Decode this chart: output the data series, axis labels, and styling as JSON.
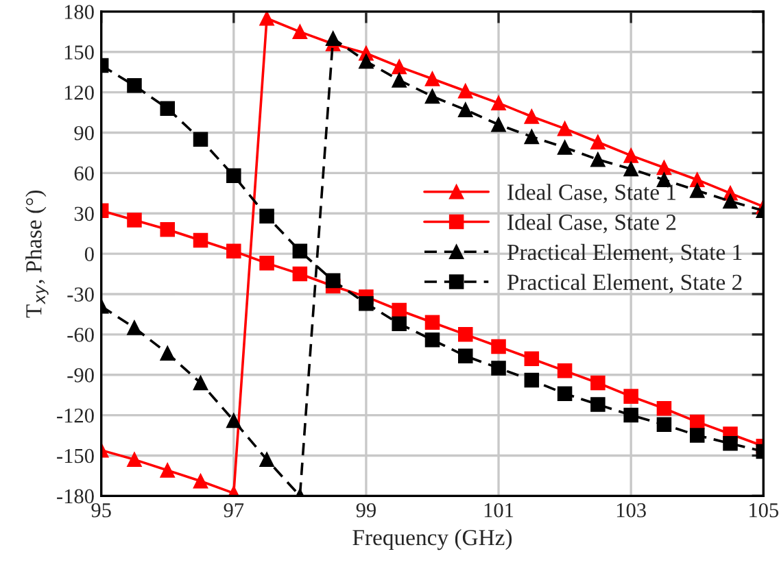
{
  "chart_data": {
    "type": "line",
    "xlabel": "Frequency (GHz)",
    "ylabel": "T$_{xy}$, Phase (°)",
    "x": [
      95,
      95.5,
      96,
      96.5,
      97,
      97.5,
      98,
      98.5,
      99,
      99.5,
      100,
      100.5,
      101,
      101.5,
      102,
      102.5,
      103,
      103.5,
      104,
      104.5,
      105
    ],
    "series": [
      {
        "name": "Ideal Case, State 1",
        "color": "#ff0000",
        "marker": "triangle",
        "line_style": "solid",
        "values": [
          -146,
          -153,
          -161,
          -169,
          -178,
          175,
          165,
          156,
          149,
          139,
          130,
          121,
          112,
          102,
          93,
          83,
          73,
          64,
          55,
          45,
          35
        ]
      },
      {
        "name": "Ideal Case, State 2",
        "color": "#ff0000",
        "marker": "square",
        "line_style": "solid",
        "values": [
          32,
          25,
          18,
          10,
          2,
          -7,
          -15,
          -24,
          -32,
          -42,
          -51,
          -60,
          -69,
          -78,
          -87,
          -96,
          -106,
          -115,
          -125,
          -134,
          -143
        ]
      },
      {
        "name": "Practical Element, State 1",
        "color": "#000000",
        "marker": "triangle",
        "line_style": "dashed",
        "values": [
          -39,
          -55,
          -74,
          -96,
          -124,
          -153,
          -180,
          160,
          143,
          129,
          117,
          107,
          96,
          87,
          79,
          70,
          63,
          55,
          47,
          39,
          32
        ]
      },
      {
        "name": "Practical Element, State 2",
        "color": "#000000",
        "marker": "square",
        "line_style": "dashed",
        "values": [
          140,
          125,
          108,
          85,
          58,
          28,
          2,
          -20,
          -37,
          -52,
          -64,
          -76,
          -85,
          -94,
          -104,
          -112,
          -120,
          -127,
          -135,
          -141,
          -147
        ]
      }
    ],
    "xlim": [
      95,
      105
    ],
    "xticks": [
      95,
      97,
      99,
      101,
      103,
      105
    ],
    "ylim": [
      -180,
      180
    ],
    "yticks": [
      -180,
      -150,
      -120,
      -90,
      -60,
      -30,
      0,
      30,
      60,
      90,
      120,
      150,
      180
    ],
    "grid": true,
    "legend": "right"
  }
}
